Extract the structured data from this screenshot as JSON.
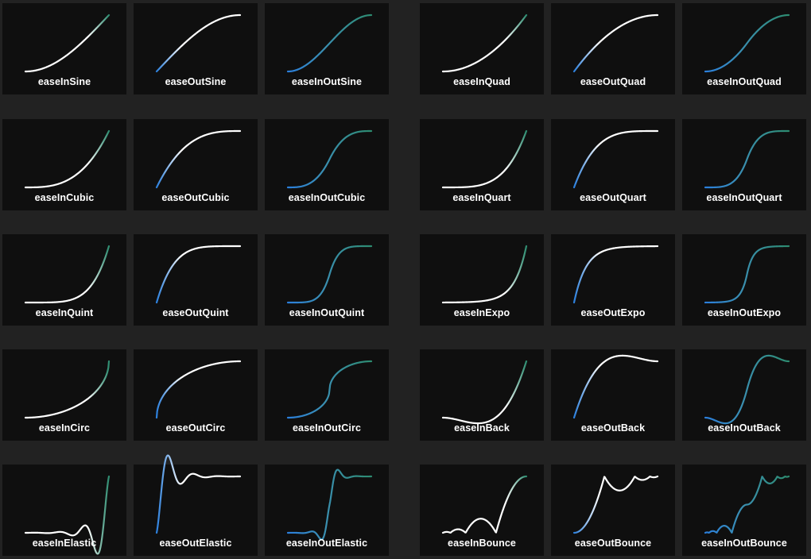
{
  "colors": {
    "background": "#222222",
    "card": "#0f0f0f",
    "curve_start": "#2b7fdc",
    "curve_mid": "#ffffff",
    "curve_end": "#2d8c70",
    "label": "#ffffff"
  },
  "easings": [
    {
      "name": "easeInSine",
      "label": "easeInSine"
    },
    {
      "name": "easeOutSine",
      "label": "easeOutSine"
    },
    {
      "name": "easeInOutSine",
      "label": "easeInOutSine"
    },
    {
      "name": "easeInQuad",
      "label": "easeInQuad"
    },
    {
      "name": "easeOutQuad",
      "label": "easeOutQuad"
    },
    {
      "name": "easeInOutQuad",
      "label": "easeInOutQuad"
    },
    {
      "name": "easeInCubic",
      "label": "easeInCubic"
    },
    {
      "name": "easeOutCubic",
      "label": "easeOutCubic"
    },
    {
      "name": "easeInOutCubic",
      "label": "easeInOutCubic"
    },
    {
      "name": "easeInQuart",
      "label": "easeInQuart"
    },
    {
      "name": "easeOutQuart",
      "label": "easeOutQuart"
    },
    {
      "name": "easeInOutQuart",
      "label": "easeInOutQuart"
    },
    {
      "name": "easeInQuint",
      "label": "easeInQuint"
    },
    {
      "name": "easeOutQuint",
      "label": "easeOutQuint"
    },
    {
      "name": "easeInOutQuint",
      "label": "easeInOutQuint"
    },
    {
      "name": "easeInExpo",
      "label": "easeInExpo"
    },
    {
      "name": "easeOutExpo",
      "label": "easeOutExpo"
    },
    {
      "name": "easeInOutExpo",
      "label": "easeInOutExpo"
    },
    {
      "name": "easeInCirc",
      "label": "easeInCirc"
    },
    {
      "name": "easeOutCirc",
      "label": "easeOutCirc"
    },
    {
      "name": "easeInOutCirc",
      "label": "easeInOutCirc"
    },
    {
      "name": "easeInBack",
      "label": "easeInBack"
    },
    {
      "name": "easeOutBack",
      "label": "easeOutBack"
    },
    {
      "name": "easeInOutBack",
      "label": "easeInOutBack"
    },
    {
      "name": "easeInElastic",
      "label": "easeInElastic"
    },
    {
      "name": "easeOutElastic",
      "label": "easeOutElastic"
    },
    {
      "name": "easeInOutElastic",
      "label": "easeInOutElastic"
    },
    {
      "name": "easeInBounce",
      "label": "easeInBounce"
    },
    {
      "name": "easeOutBounce",
      "label": "easeOutBounce"
    },
    {
      "name": "easeInOutBounce",
      "label": "easeInOutBounce"
    }
  ]
}
